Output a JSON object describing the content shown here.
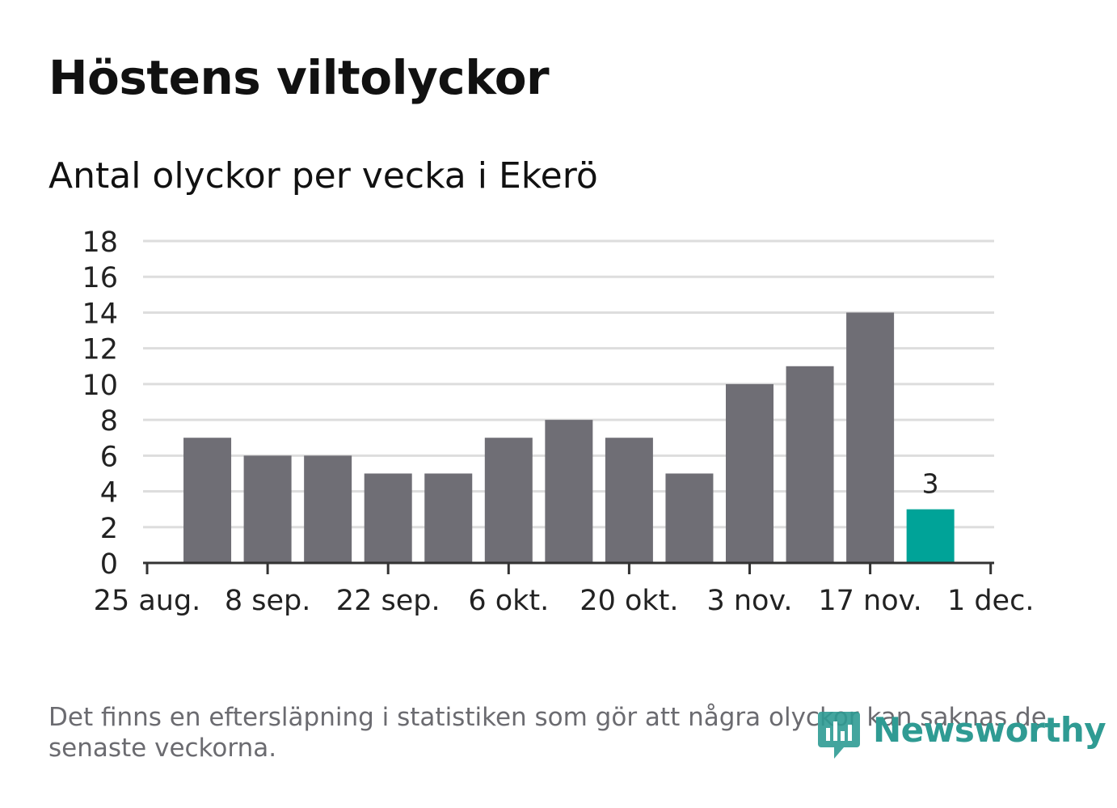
{
  "chart_data": {
    "type": "bar",
    "title": "Höstens viltolyckor",
    "subtitle": "Antal olyckor per vecka i Ekerö",
    "xlabel": "",
    "ylabel": "",
    "ylim": [
      0,
      18
    ],
    "yticks": [
      "0",
      "2",
      "4",
      "6",
      "8",
      "10",
      "12",
      "14",
      "16",
      "18"
    ],
    "xticks": [
      "25 aug.",
      "8 sep.",
      "22 sep.",
      "6 okt.",
      "20 okt.",
      "3 nov.",
      "17 nov.",
      "1 dec."
    ],
    "values": [
      7,
      6,
      6,
      5,
      5,
      7,
      8,
      7,
      5,
      10,
      11,
      14,
      3
    ],
    "highlight_index": 12,
    "highlight_label": "3",
    "grid": true,
    "bar_color": "#6f6e75",
    "highlight_color": "#00a398",
    "grid_color": "#dddddd",
    "axis_color": "#333333"
  },
  "footnote": "Det finns en eftersläpning i statistiken som gör att några olyckor kan saknas de senaste veckorna.",
  "logo": {
    "text": "Newsworthy",
    "icon": "bar-chart-badge-icon",
    "color": "#2f9b93"
  }
}
